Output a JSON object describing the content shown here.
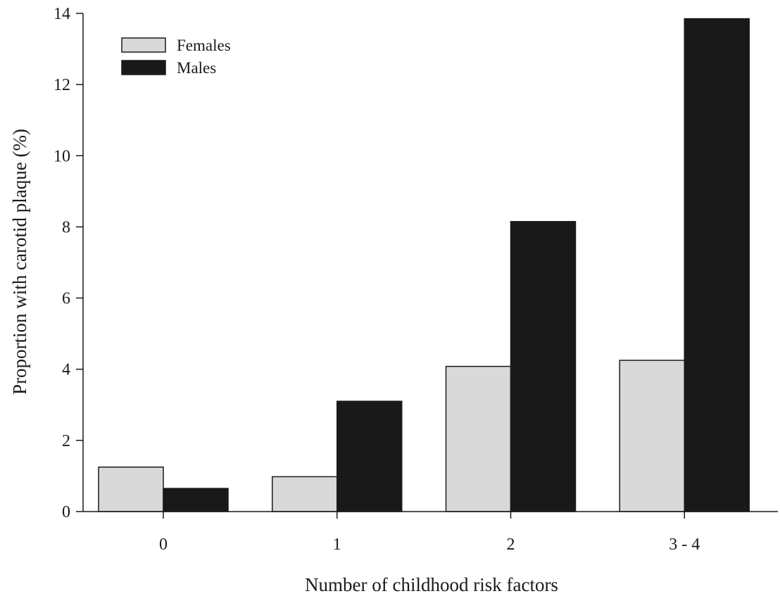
{
  "chart_data": {
    "type": "bar",
    "categories": [
      "0",
      "1",
      "2",
      "3 - 4"
    ],
    "series": [
      {
        "name": "Females",
        "color": "#d9d9d9",
        "values": [
          1.25,
          0.98,
          4.08,
          4.25
        ]
      },
      {
        "name": "Males",
        "color": "#191919",
        "values": [
          0.65,
          3.1,
          8.15,
          13.85
        ]
      }
    ],
    "xlabel": "Number of childhood risk factors",
    "ylabel": "Proportion with carotid plaque (%)",
    "ylim": [
      0,
      14
    ],
    "yticks": [
      0,
      2,
      4,
      6,
      8,
      10,
      12,
      14
    ],
    "grid": false,
    "legend_position": "top-left"
  }
}
